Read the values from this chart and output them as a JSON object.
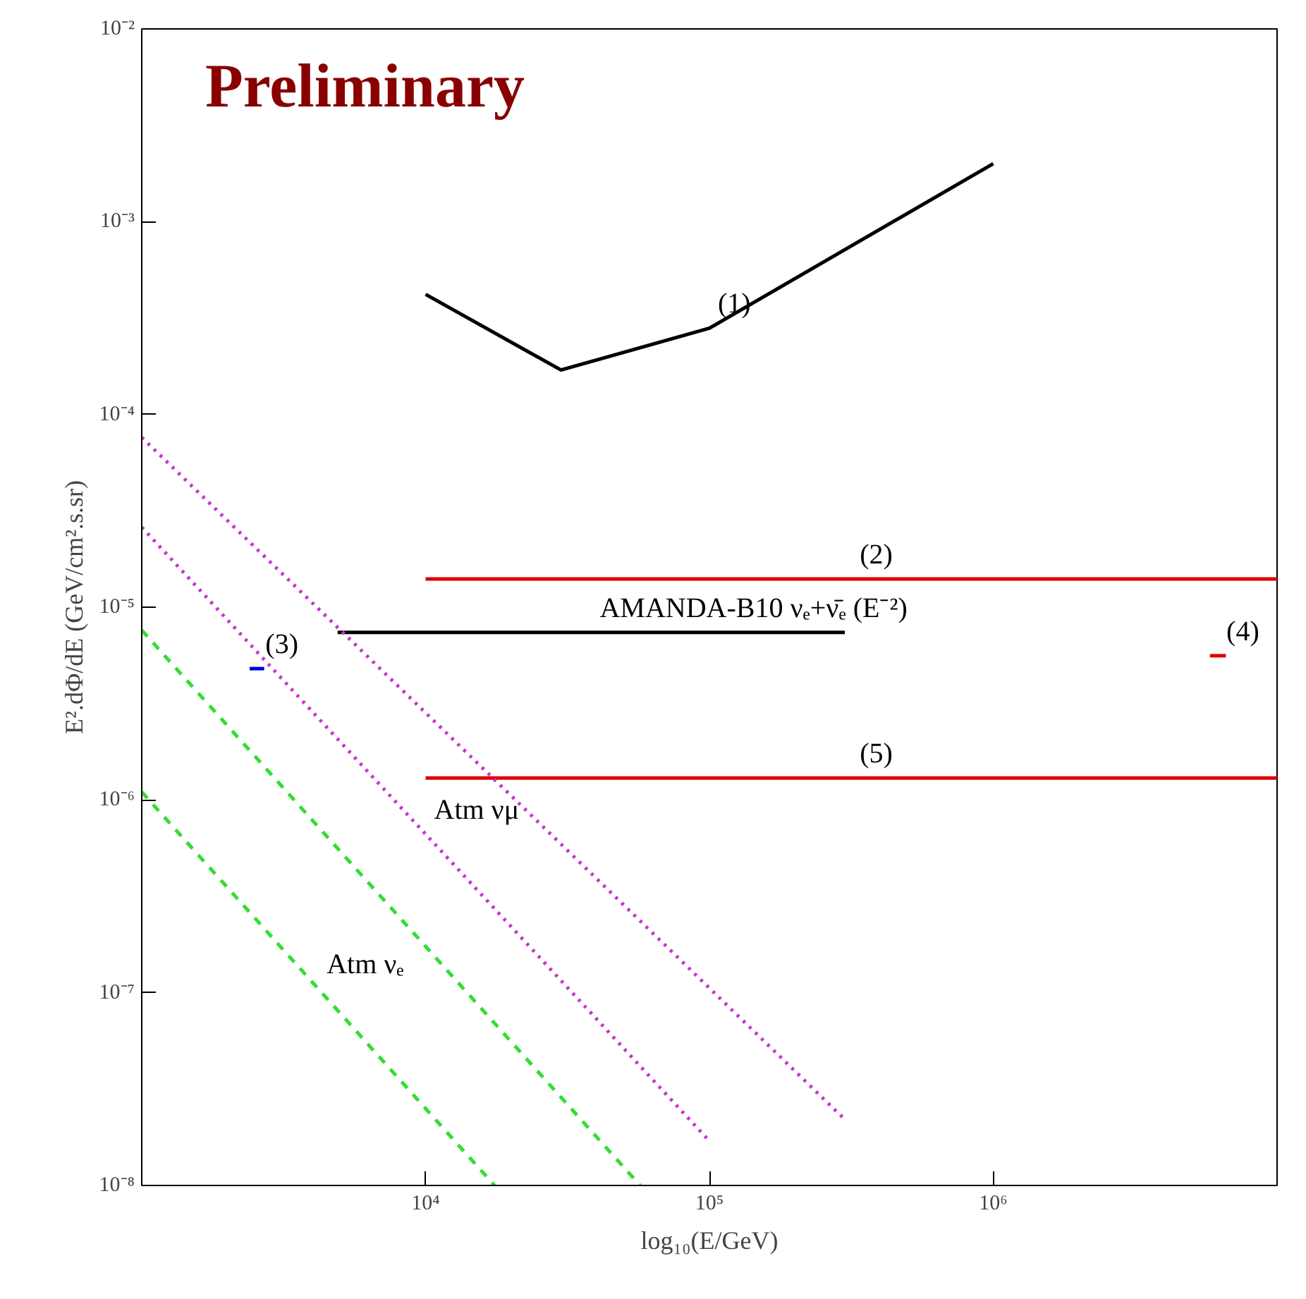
{
  "chart_data": {
    "type": "line",
    "xlabel": "log₁₀(E/GeV)",
    "ylabel": "E².dΦ/dE (GeV/cm².s.sr)",
    "log": "xy",
    "grid": false,
    "legend": false,
    "xlim": [
      1000,
      10000000
    ],
    "ylim": [
      1e-08,
      0.01
    ],
    "xticks": [
      {
        "value": 10000,
        "label": "10⁴"
      },
      {
        "value": 100000,
        "label": "10⁵"
      },
      {
        "value": 1000000,
        "label": "10⁶"
      }
    ],
    "yticks": [
      {
        "value": 1e-08,
        "label": "10⁻⁸"
      },
      {
        "value": 1e-07,
        "label": "10⁻⁷"
      },
      {
        "value": 1e-06,
        "label": "10⁻⁶"
      },
      {
        "value": 1e-05,
        "label": "10⁻⁵"
      },
      {
        "value": 0.0001,
        "label": "10⁻⁴"
      },
      {
        "value": 0.001,
        "label": "10⁻³"
      },
      {
        "value": 0.01,
        "label": "10⁻²"
      }
    ],
    "series": [
      {
        "name": "(1)",
        "color": "#000000",
        "line_style": "solid",
        "x": [
          10000,
          30000,
          100000,
          1000000
        ],
        "values": [
          0.00042,
          0.00017,
          0.00028,
          0.002
        ]
      },
      {
        "name": "(2)",
        "color": "#dd0000",
        "line_style": "solid",
        "x": [
          10000,
          10000000
        ],
        "values": [
          1.4e-05,
          1.4e-05
        ]
      },
      {
        "name": "(3)",
        "color": "#0000dd",
        "line_style": "solid",
        "x": [
          2400,
          2700
        ],
        "values": [
          4.8e-06,
          4.8e-06
        ]
      },
      {
        "name": "(4)",
        "color": "#dd0000",
        "line_style": "solid",
        "x": [
          5800000,
          6600000
        ],
        "values": [
          5.6e-06,
          5.6e-06
        ]
      },
      {
        "name": "(5)",
        "color": "#dd0000",
        "line_style": "solid",
        "x": [
          10000,
          10000000
        ],
        "values": [
          1.3e-06,
          1.3e-06
        ]
      },
      {
        "name": "AMANDA-B10 νₑ+ν̄ₑ (E⁻²)",
        "color": "#000000",
        "line_style": "solid",
        "x": [
          4900,
          300000
        ],
        "values": [
          7.4e-06,
          7.4e-06
        ]
      },
      {
        "color": "#cc33cc",
        "line_style": "dotted",
        "x": [
          1000,
          300000
        ],
        "values": [
          7.6e-05,
          2.2e-08
        ]
      },
      {
        "name": "Atm νμ",
        "color": "#cc33cc",
        "line_style": "dotted",
        "x": [
          1000,
          100000
        ],
        "values": [
          2.6e-05,
          1.7e-08
        ]
      },
      {
        "color": "#33dd33",
        "line_style": "dashed",
        "x": [
          1000,
          57000
        ],
        "values": [
          7.6e-06,
          1e-08
        ]
      },
      {
        "name": "Atm νₑ",
        "color": "#33dd33",
        "line_style": "dashed",
        "x": [
          1000,
          17500
        ],
        "values": [
          1.1e-06,
          1e-08
        ]
      }
    ],
    "annotations": [
      "Preliminary"
    ]
  }
}
